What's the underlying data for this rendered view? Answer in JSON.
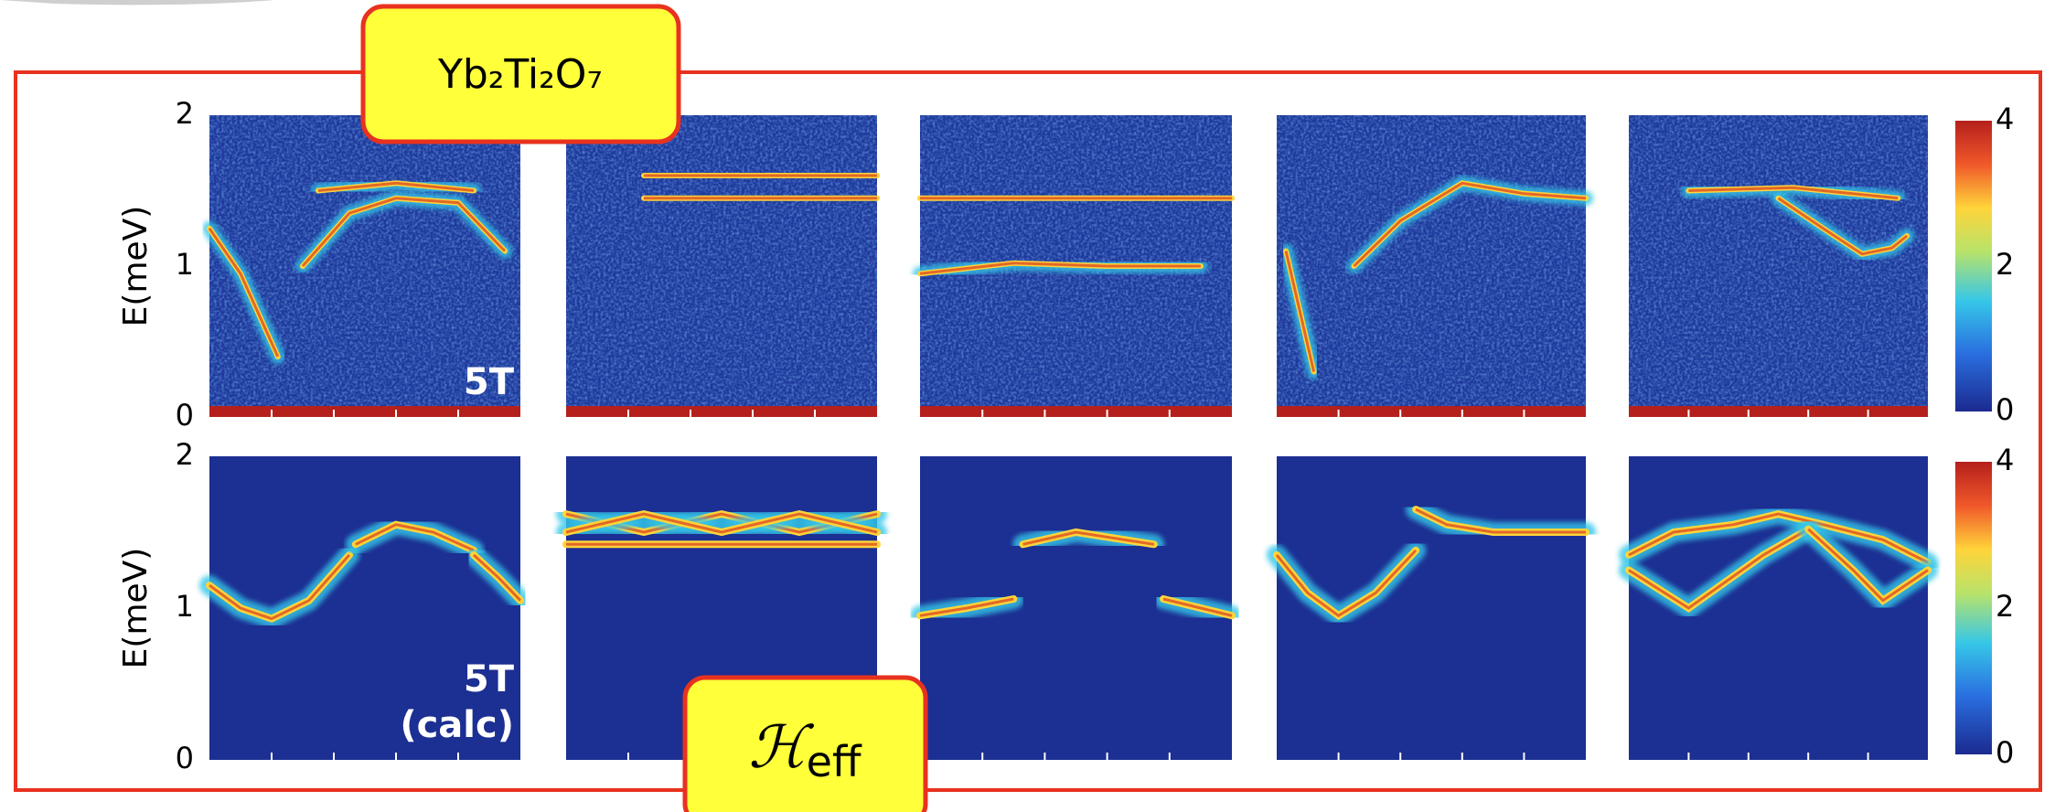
{
  "tag_material": "Yb₂Ti₂O₇",
  "tag_model": {
    "symbol": "ℋ",
    "subscript": "eff"
  },
  "rows": [
    {
      "axis_label": "E(meV)",
      "yticks": [
        0,
        1,
        2
      ],
      "panel_label_lines": [
        "5T"
      ],
      "colorbar_ticks": [
        0,
        2,
        4
      ]
    },
    {
      "axis_label": "E(meV)",
      "yticks": [
        0,
        1,
        2
      ],
      "panel_label_lines": [
        "5T",
        "(calc)"
      ],
      "colorbar_ticks": [
        0,
        2,
        4
      ]
    }
  ]
}
